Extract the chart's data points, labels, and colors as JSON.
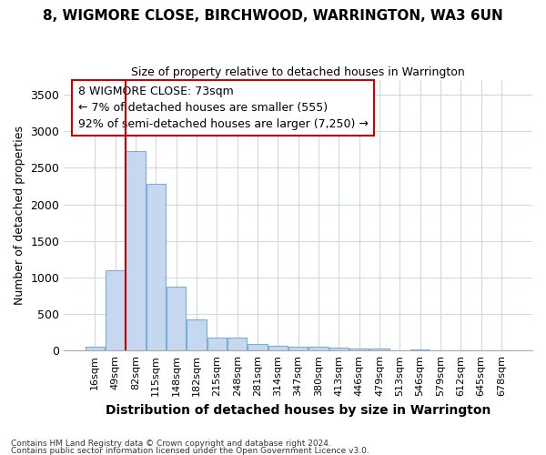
{
  "title1": "8, WIGMORE CLOSE, BIRCHWOOD, WARRINGTON, WA3 6UN",
  "title2": "Size of property relative to detached houses in Warrington",
  "xlabel": "Distribution of detached houses by size in Warrington",
  "ylabel": "Number of detached properties",
  "categories": [
    "16sqm",
    "49sqm",
    "82sqm",
    "115sqm",
    "148sqm",
    "182sqm",
    "215sqm",
    "248sqm",
    "281sqm",
    "314sqm",
    "347sqm",
    "380sqm",
    "413sqm",
    "446sqm",
    "479sqm",
    "513sqm",
    "546sqm",
    "579sqm",
    "612sqm",
    "645sqm",
    "678sqm"
  ],
  "values": [
    50,
    1100,
    2730,
    2280,
    880,
    430,
    175,
    175,
    90,
    65,
    55,
    55,
    35,
    25,
    25,
    5,
    20,
    0,
    0,
    0,
    0
  ],
  "bar_color": "#c5d8f0",
  "bar_edge_color": "#7aafd4",
  "bg_color": "#ffffff",
  "grid_color": "#d0d8e8",
  "annotation_text": "8 WIGMORE CLOSE: 73sqm\n← 7% of detached houses are smaller (555)\n92% of semi-detached houses are larger (7,250) →",
  "annotation_box_color": "#ffffff",
  "annotation_box_edge_color": "#cc0000",
  "vline_x": 1.5,
  "vline_color": "#cc0000",
  "ylim": [
    0,
    3700
  ],
  "yticks": [
    0,
    500,
    1000,
    1500,
    2000,
    2500,
    3000,
    3500
  ],
  "footnote1": "Contains HM Land Registry data © Crown copyright and database right 2024.",
  "footnote2": "Contains public sector information licensed under the Open Government Licence v3.0."
}
